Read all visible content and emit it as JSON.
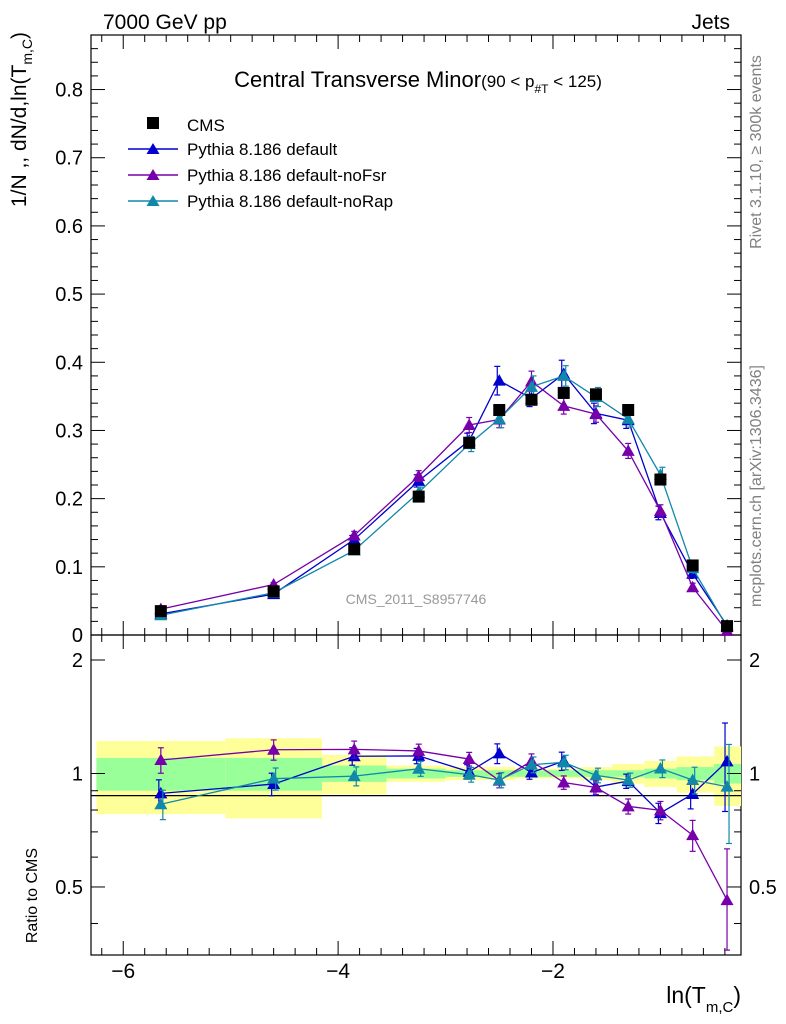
{
  "header": {
    "left": "7000 GeV pp",
    "right": "Jets"
  },
  "side_text": {
    "rivet": "Rivet 3.1.10, ≥ 300k events",
    "mcplots": "mcplots.cern.ch [arXiv:1306.3436]"
  },
  "watermark": "CMS_2011_S8957746",
  "title": {
    "main": "Central Transverse Minor",
    "cut_prefix": "(90 < p",
    "cut_sub": "#T",
    "cut_suffix": " < 125)"
  },
  "axes": {
    "ylabel_prefix": "1/N ,, dN/d,ln(T",
    "ylabel_sub": "m,C",
    "ylabel_suffix": ")",
    "ratio_ylabel": "Ratio to CMS",
    "xlabel_prefix": "ln(T",
    "xlabel_sub": "m,C",
    "xlabel_suffix": ")"
  },
  "colors": {
    "cms": "#000000",
    "default": "#0000cc",
    "noFsr": "#7700aa",
    "noRap": "#1188aa",
    "band_inner": "#99ff99",
    "band_outer": "#ffff99"
  },
  "chart_data": {
    "type": "scatter",
    "title": "Central Transverse Minor (90 < p_T < 125)",
    "xlabel": "ln(T_m,C)",
    "ylabel": "1/N dN/d ln(T_m,C)",
    "xlim": [
      -6.3,
      -0.25
    ],
    "ylim": [
      0,
      0.88
    ],
    "xticks": [
      -6,
      -4,
      -2
    ],
    "yticks": [
      0,
      0.1,
      0.2,
      0.3,
      0.4,
      0.5,
      0.6,
      0.7,
      0.8
    ],
    "ratio_ylim": [
      0.33,
      2.33
    ],
    "ratio_yticks": [
      0.5,
      1,
      2
    ],
    "legend_position": "top-left",
    "grid": false,
    "bins": [
      [
        -6.25,
        -5.05
      ],
      [
        -5.05,
        -4.15
      ],
      [
        -4.15,
        -3.55
      ],
      [
        -3.55,
        -3.0
      ],
      [
        -3.0,
        -2.65
      ],
      [
        -2.65,
        -2.35
      ],
      [
        -2.35,
        -2.05
      ],
      [
        -2.05,
        -1.75
      ],
      [
        -1.75,
        -1.45
      ],
      [
        -1.45,
        -1.15
      ],
      [
        -1.15,
        -0.85
      ],
      [
        -0.85,
        -0.5
      ],
      [
        -0.5,
        -0.25
      ]
    ],
    "x": [
      -5.65,
      -4.6,
      -3.85,
      -3.25,
      -2.78,
      -2.5,
      -2.2,
      -1.9,
      -1.6,
      -1.3,
      -1.0,
      -0.7,
      -0.38
    ],
    "series": [
      {
        "name": "CMS",
        "marker": "square",
        "values": [
          0.035,
          0.064,
          0.126,
          0.203,
          0.282,
          0.33,
          0.345,
          0.355,
          0.353,
          0.33,
          0.228,
          0.102,
          0.013
        ],
        "errors": [
          0.002,
          0.003,
          0.004,
          0.005,
          0.006,
          0.007,
          0.007,
          0.007,
          0.007,
          0.007,
          0.006,
          0.004,
          0.002
        ]
      },
      {
        "name": "Pythia 8.186 default",
        "marker": "triangle",
        "values": [
          0.031,
          0.06,
          0.14,
          0.226,
          0.285,
          0.373,
          0.347,
          0.383,
          0.325,
          0.315,
          0.179,
          0.09,
          0.014
        ],
        "errors": [
          0.002,
          0.003,
          0.006,
          0.009,
          0.011,
          0.021,
          0.012,
          0.02,
          0.015,
          0.012,
          0.01,
          0.007,
          0.003
        ]
      },
      {
        "name": "Pythia 8.186 default-noFsr",
        "marker": "triangle",
        "values": [
          0.038,
          0.074,
          0.146,
          0.233,
          0.308,
          0.316,
          0.372,
          0.336,
          0.324,
          0.27,
          0.182,
          0.07,
          0.006
        ],
        "errors": [
          0.002,
          0.003,
          0.006,
          0.008,
          0.011,
          0.012,
          0.015,
          0.012,
          0.012,
          0.011,
          0.009,
          0.006,
          0.002
        ]
      },
      {
        "name": "Pythia 8.186 default-noRap",
        "marker": "triangle",
        "values": [
          0.029,
          0.062,
          0.124,
          0.209,
          0.28,
          0.317,
          0.364,
          0.38,
          0.349,
          0.317,
          0.235,
          0.098,
          0.012
        ],
        "errors": [
          0.002,
          0.003,
          0.006,
          0.008,
          0.011,
          0.013,
          0.016,
          0.015,
          0.014,
          0.012,
          0.011,
          0.007,
          0.003
        ]
      }
    ],
    "ratio_band": {
      "inner_lo": [
        0.9,
        0.9,
        0.95,
        0.97,
        0.98,
        0.98,
        0.98,
        0.98,
        0.98,
        0.98,
        0.97,
        0.96,
        0.94
      ],
      "inner_hi": [
        1.1,
        1.1,
        1.05,
        1.03,
        1.02,
        1.02,
        1.02,
        1.02,
        1.02,
        1.02,
        1.03,
        1.04,
        1.06
      ],
      "outer_lo": [
        0.78,
        0.76,
        0.88,
        0.95,
        0.96,
        0.96,
        0.97,
        0.97,
        0.96,
        0.94,
        0.92,
        0.89,
        0.82
      ],
      "outer_hi": [
        1.22,
        1.24,
        1.12,
        1.05,
        1.04,
        1.04,
        1.03,
        1.03,
        1.04,
        1.06,
        1.08,
        1.11,
        1.18
      ]
    }
  }
}
